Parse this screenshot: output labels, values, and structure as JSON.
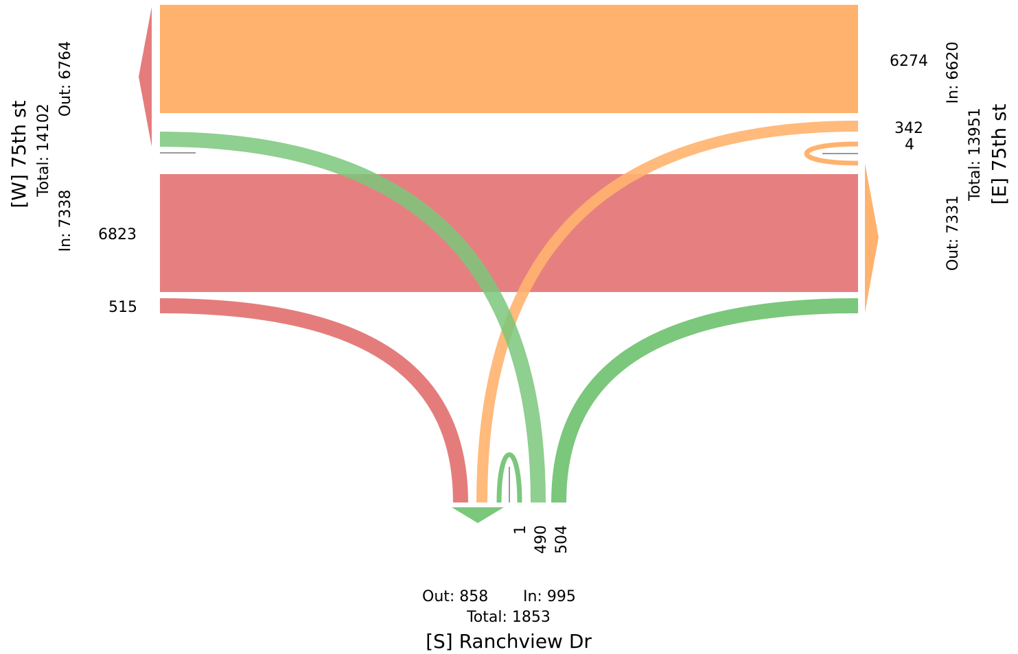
{
  "approaches": {
    "west": {
      "name": "[W] 75th st",
      "total": "Total: 14102",
      "in": "In: 7338",
      "out": "Out: 6764",
      "color": "#d62728"
    },
    "east": {
      "name": "[E] 75th st",
      "total": "Total: 13951",
      "in": "In: 6620",
      "out": "Out: 7331",
      "color": "#ff7f0e"
    },
    "south": {
      "name": "[S] Ranchview Dr",
      "total": "Total: 1853",
      "in": "In: 995",
      "out": "Out: 858",
      "color": "#2ca02c"
    }
  },
  "flows": [
    {
      "from": "east",
      "to": "west",
      "value": 6274,
      "label": "6274"
    },
    {
      "from": "east",
      "to": "south",
      "value": 342,
      "label": "342"
    },
    {
      "from": "east",
      "to": "east",
      "value": 4,
      "label": "4"
    },
    {
      "from": "west",
      "to": "east",
      "value": 6823,
      "label": "6823"
    },
    {
      "from": "west",
      "to": "south",
      "value": 515,
      "label": "515"
    },
    {
      "from": "south",
      "to": "south",
      "value": 1,
      "label": "1"
    },
    {
      "from": "south",
      "to": "west",
      "value": 490,
      "label": "490"
    },
    {
      "from": "south",
      "to": "east",
      "value": 504,
      "label": "504"
    }
  ],
  "colors": {
    "west": "#e57c7c",
    "east": "#ffb26e",
    "south": "#7bc77b",
    "uturn_line": "#999999"
  }
}
